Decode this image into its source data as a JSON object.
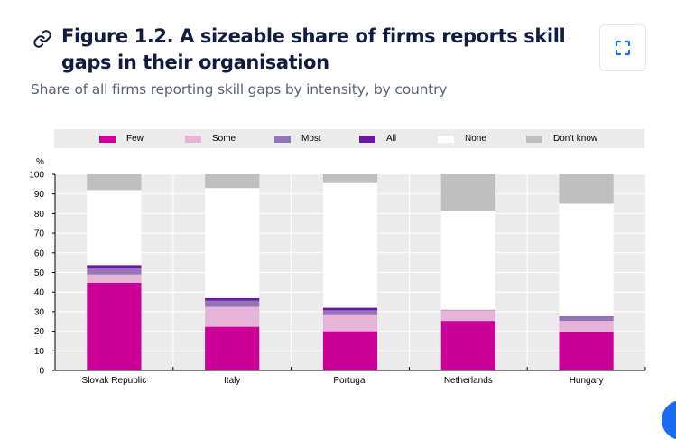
{
  "header": {
    "title": "Figure 1.2. A sizeable share of firms reports skill gaps in their organisation",
    "subtitle": "Share of all firms reporting skill gaps by intensity, by country",
    "link_icon": "link-icon",
    "expand_icon": "expand-icon"
  },
  "colors": {
    "Few": "#cc0099",
    "Some": "#e6b3d9",
    "Most": "#9575b9",
    "All": "#6a1aa0",
    "None": "#ffffff",
    "Don't know": "#bfbfbf",
    "plot_bg": "#ebebeb",
    "title": "#101d40",
    "accent": "#1a6cf0"
  },
  "chart_data": {
    "type": "bar",
    "stacked": true,
    "title": "",
    "xlabel": "",
    "ylabel": "%",
    "ylim": [
      0,
      100
    ],
    "yticks": [
      0,
      10,
      20,
      30,
      40,
      50,
      60,
      70,
      80,
      90,
      100
    ],
    "grid": true,
    "legend_position": "top",
    "categories": [
      "Slovak Republic",
      "Italy",
      "Portugal",
      "Netherlands",
      "Hungary"
    ],
    "series": [
      {
        "name": "Few",
        "values": [
          44.7,
          22.3,
          20.0,
          25.3,
          19.5
        ]
      },
      {
        "name": "Some",
        "values": [
          4.3,
          10.2,
          8.2,
          5.4,
          5.8
        ]
      },
      {
        "name": "Most",
        "values": [
          3.0,
          3.1,
          2.5,
          0.3,
          2.0
        ]
      },
      {
        "name": "All",
        "values": [
          1.8,
          1.3,
          1.3,
          0.0,
          0.3
        ]
      },
      {
        "name": "None",
        "values": [
          38.2,
          56.1,
          64.0,
          50.6,
          57.4
        ]
      },
      {
        "name": "Don't know",
        "values": [
          8.0,
          7.0,
          4.0,
          18.4,
          15.0
        ]
      }
    ]
  }
}
